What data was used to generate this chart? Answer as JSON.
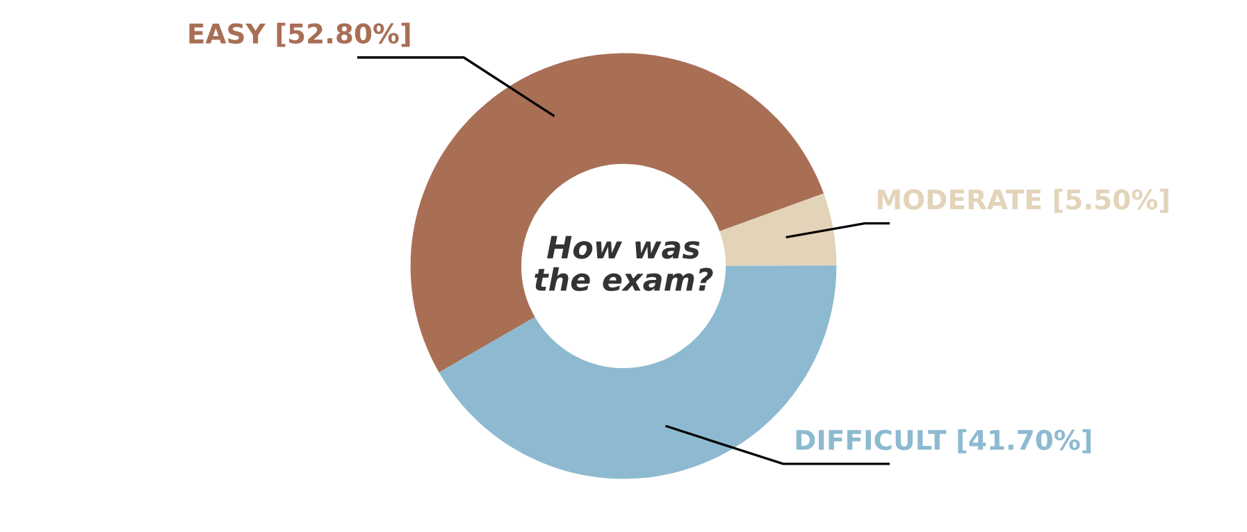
{
  "chart_data": {
    "type": "donut",
    "title": "How was the exam?",
    "categories": [
      "EASY",
      "MODERATE",
      "DIFFICULT"
    ],
    "values": [
      52.8,
      5.5,
      41.7
    ],
    "value_labels": [
      "[52.80%]",
      "[5.50%]",
      "[41.70%]"
    ],
    "colors": [
      "#a86f55",
      "#e3d3b9",
      "#8dbad0"
    ],
    "legend": false
  }
}
